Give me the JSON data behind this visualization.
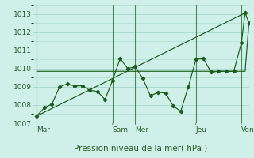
{
  "xlabel": "Pression niveau de la mer( hPa )",
  "bg_color": "#cef0e8",
  "plot_bg_color": "#cef0e8",
  "grid_color": "#aad8ce",
  "line_color": "#1a5c1a",
  "ylim": [
    1007,
    1013.5
  ],
  "yticks": [
    1007,
    1008,
    1009,
    1010,
    1011,
    1012,
    1013
  ],
  "day_labels": [
    "Mar",
    "Sam",
    "Mer",
    "Jeu",
    "Ven"
  ],
  "day_x": [
    0,
    10,
    13,
    21,
    27
  ],
  "vline_x": [
    0,
    10,
    13,
    21,
    27
  ],
  "xlim": [
    -0.5,
    28
  ],
  "series_main": [
    [
      0,
      1007.4
    ],
    [
      1,
      1007.85
    ],
    [
      2,
      1008.05
    ],
    [
      3,
      1009.0
    ],
    [
      4,
      1009.15
    ],
    [
      5,
      1009.05
    ],
    [
      6,
      1009.05
    ],
    [
      7,
      1008.8
    ],
    [
      8,
      1008.75
    ],
    [
      9,
      1008.3
    ],
    [
      10,
      1009.35
    ],
    [
      11,
      1010.55
    ],
    [
      12,
      1010.0
    ],
    [
      13,
      1010.1
    ],
    [
      14,
      1009.45
    ],
    [
      15,
      1008.5
    ],
    [
      16,
      1008.7
    ],
    [
      17,
      1008.65
    ],
    [
      18,
      1007.95
    ],
    [
      19,
      1007.65
    ],
    [
      20,
      1009.0
    ],
    [
      21,
      1010.5
    ],
    [
      22,
      1010.55
    ],
    [
      23,
      1009.8
    ],
    [
      24,
      1009.85
    ],
    [
      25,
      1009.85
    ],
    [
      26,
      1009.85
    ],
    [
      27,
      1011.4
    ],
    [
      27.5,
      1013.05
    ],
    [
      28,
      1012.5
    ]
  ],
  "series_diagonal": [
    [
      0,
      1007.4
    ],
    [
      27.5,
      1013.05
    ]
  ],
  "series_flat": [
    [
      0,
      1009.85
    ],
    [
      27.5,
      1009.85
    ],
    [
      28,
      1012.5
    ]
  ]
}
